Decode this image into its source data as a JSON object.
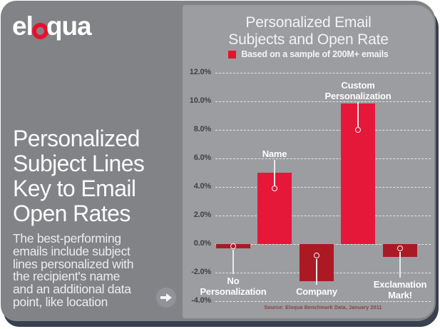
{
  "colors": {
    "card_background": "#818387",
    "chart_panel_background": "#9b9da0",
    "card_shadow": "#39404f",
    "positive_bar": "#e5183a",
    "negative_bar": "#ab1a24",
    "legend_swatch": "#e8112d",
    "logo_ring": "#e8112d",
    "source_text": "#8d4040"
  },
  "left_panel": {
    "logo": {
      "brand": "eloqua",
      "text_before_ring": "el",
      "text_after_ring": "qua"
    },
    "headline_lines": [
      "Personalized",
      "Subject Lines",
      "Key to Email",
      "Open Rates"
    ],
    "body_lines": [
      "The best-performing",
      "emails include subject",
      "lines personalized with",
      "the recipient's name",
      "and an additional data",
      "point, like location"
    ]
  },
  "chart_panel": {
    "title_lines": [
      "Personalized Email",
      "Subjects and Open Rate"
    ],
    "legend_label": "Based on a sample of 200M+ emails",
    "source": "Source: Eloqua Benchmark Data, January 2011"
  },
  "chart_data": {
    "type": "bar",
    "title": "Personalized Email Subjects and Open Rate",
    "subtitle": "Based on a sample of 200M+ emails",
    "categories": [
      "No Personalization",
      "Name",
      "Company",
      "Custom Personalization",
      "Exclamation Mark!"
    ],
    "values": [
      -0.3,
      5.0,
      -2.6,
      9.85,
      -0.9
    ],
    "unit": "%",
    "bar_colors": [
      "#ab1a24",
      "#e5183a",
      "#ab1a24",
      "#e5183a",
      "#ab1a24"
    ],
    "ylim": [
      -4,
      12
    ],
    "ytick_step": 2,
    "ytick_labels": [
      "12.0%",
      "10.0%",
      "8.0%",
      "6.0%",
      "4.0%",
      "2.0%",
      "0.0%",
      "-2.0%",
      "-4.0%"
    ],
    "grid": "white dashed horizontal",
    "legend_position": "top center",
    "annotations": [
      {
        "lines": [
          "No",
          "Personalization"
        ],
        "side": "below",
        "circle_v": -0.15,
        "label_v": -2.2
      },
      {
        "lines": [
          "Name"
        ],
        "side": "above",
        "circle_v": 3.9,
        "label_v": 6.7
      },
      {
        "lines": [
          "Company"
        ],
        "side": "below",
        "circle_v": -0.8,
        "label_v": -2.95
      },
      {
        "lines": [
          "Custom",
          "Personalization"
        ],
        "side": "above",
        "circle_v": 8.0,
        "label_v": 11.5
      },
      {
        "lines": [
          "Exclamation",
          "Mark!"
        ],
        "side": "below",
        "circle_v": -0.3,
        "label_v": -2.45
      }
    ],
    "source": "Source: Eloqua Benchmark Data, January 2011"
  }
}
